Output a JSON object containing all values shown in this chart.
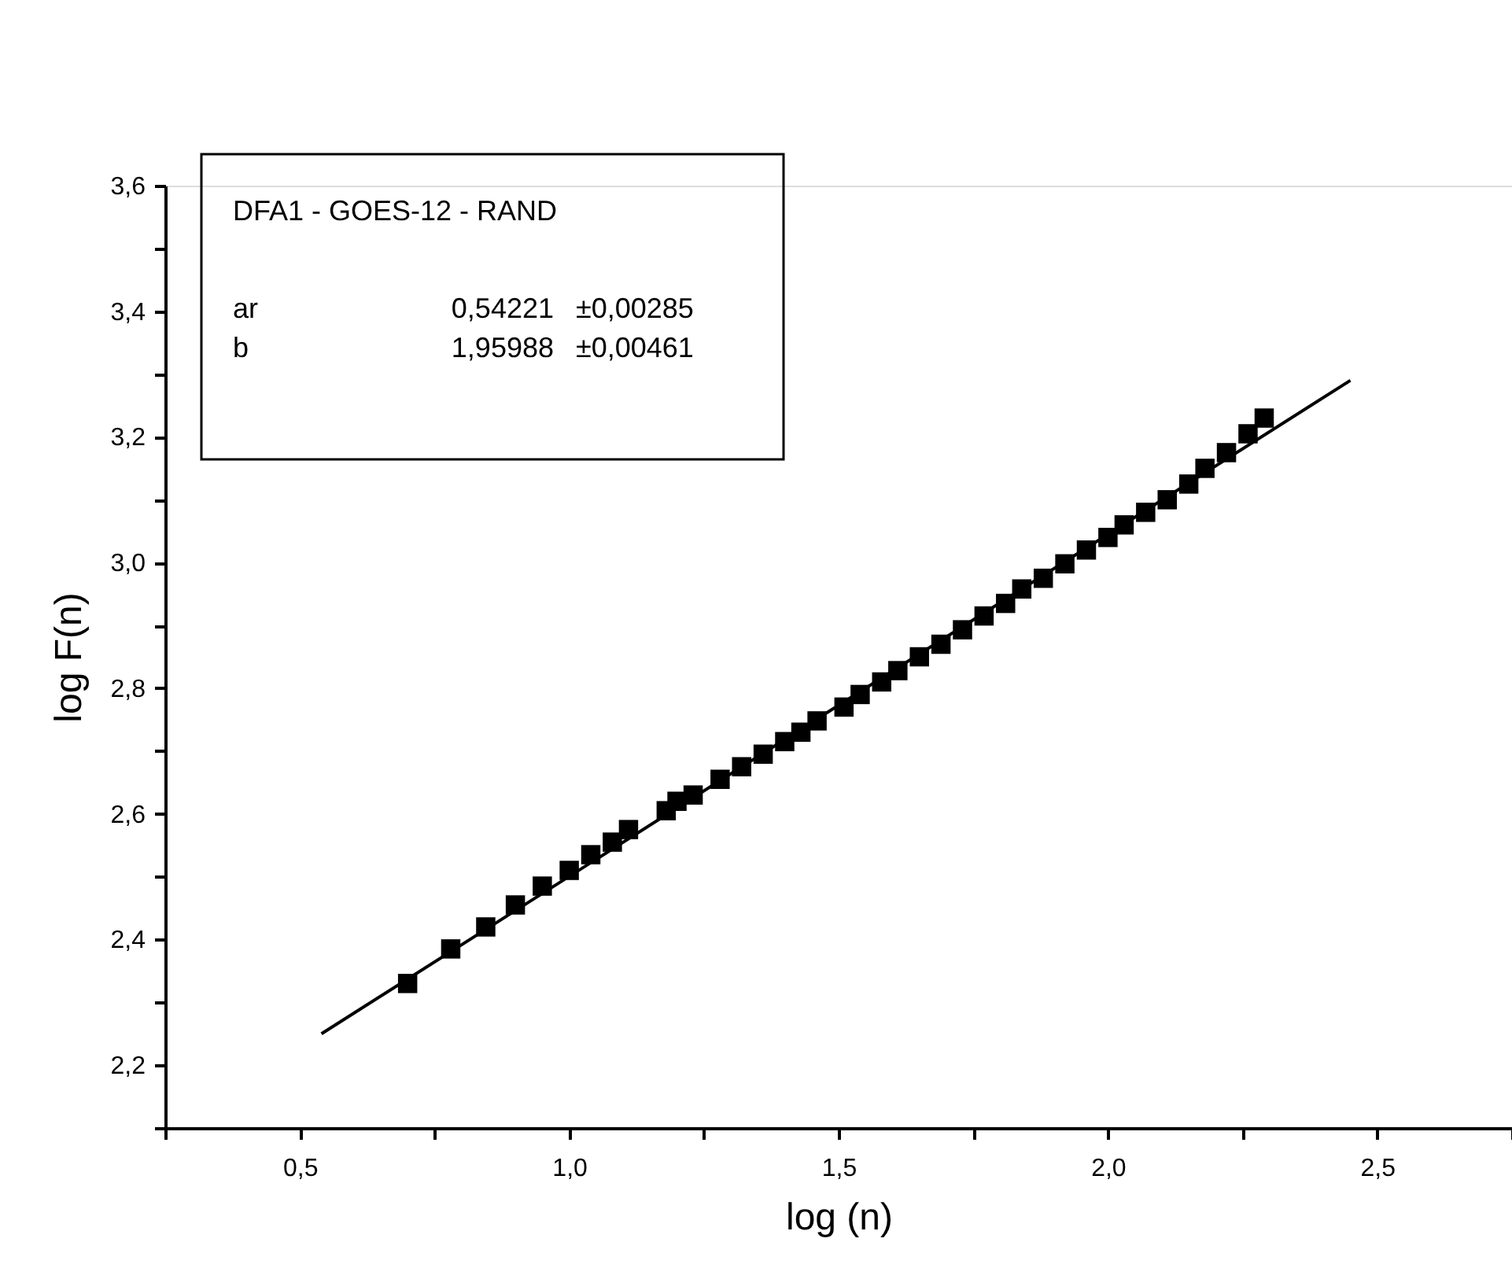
{
  "chart_data": {
    "type": "scatter",
    "xlabel": "log (n)",
    "ylabel": "log F(n)",
    "xlim": [
      0.25,
      2.75
    ],
    "xticks": [
      {
        "value": 0.25,
        "label": null
      },
      {
        "value": 0.5,
        "label": "0,5"
      },
      {
        "value": 0.75,
        "label": null
      },
      {
        "value": 1.0,
        "label": "1,0"
      },
      {
        "value": 1.25,
        "label": null
      },
      {
        "value": 1.5,
        "label": "1,5"
      },
      {
        "value": 1.75,
        "label": null
      },
      {
        "value": 2.0,
        "label": "2,0"
      },
      {
        "value": 2.25,
        "label": null
      },
      {
        "value": 2.5,
        "label": "2,5"
      },
      {
        "value": 2.75,
        "label": null
      }
    ],
    "ylim": [
      2.1,
      3.6
    ],
    "yticks": [
      {
        "value": 2.1,
        "label": null
      },
      {
        "value": 2.2,
        "label": "2,2"
      },
      {
        "value": 2.3,
        "label": null
      },
      {
        "value": 2.4,
        "label": "2,4"
      },
      {
        "value": 2.5,
        "label": null
      },
      {
        "value": 2.6,
        "label": "2,6"
      },
      {
        "value": 2.7,
        "label": null
      },
      {
        "value": 2.8,
        "label": "2,8"
      },
      {
        "value": 2.9,
        "label": null
      },
      {
        "value": 3.0,
        "label": "3,0"
      },
      {
        "value": 3.1,
        "label": null
      },
      {
        "value": 3.2,
        "label": "3,2"
      },
      {
        "value": 3.3,
        "label": null
      },
      {
        "value": 3.4,
        "label": "3,4"
      },
      {
        "value": 3.5,
        "label": null
      },
      {
        "value": 3.6,
        "label": "3,6"
      }
    ],
    "grid": false,
    "annotations": [
      "DFA1 - GOES-12 - RAND",
      "ar 0,54221 ±0,00285",
      "b 1,95988 ±0,00461"
    ],
    "series": [
      {
        "type": "scatter",
        "marker": "square",
        "color": "#000000",
        "x": [
          0.7,
          0.78,
          0.845,
          0.9,
          0.95,
          1.0,
          1.04,
          1.08,
          1.11,
          1.18,
          1.2,
          1.23,
          1.28,
          1.32,
          1.36,
          1.4,
          1.43,
          1.46,
          1.51,
          1.54,
          1.58,
          1.61,
          1.65,
          1.69,
          1.73,
          1.77,
          1.81,
          1.84,
          1.88,
          1.92,
          1.96,
          2.0,
          2.03,
          2.07,
          2.11,
          2.15,
          2.18,
          2.22,
          2.26,
          2.29
        ],
        "values": [
          2.33,
          2.385,
          2.42,
          2.455,
          2.485,
          2.51,
          2.535,
          2.555,
          2.575,
          2.605,
          2.62,
          2.63,
          2.655,
          2.675,
          2.695,
          2.715,
          2.73,
          2.748,
          2.77,
          2.79,
          2.81,
          2.828,
          2.85,
          2.87,
          2.893,
          2.915,
          2.935,
          2.958,
          2.975,
          2.998,
          3.02,
          3.04,
          3.06,
          3.08,
          3.1,
          3.125,
          3.15,
          3.175,
          3.205,
          3.23
        ]
      },
      {
        "type": "line",
        "line_style": "solid",
        "marker": "none",
        "color": "#000000",
        "x": [
          0.54,
          2.45
        ],
        "values": [
          2.25,
          3.29
        ]
      }
    ]
  }
}
